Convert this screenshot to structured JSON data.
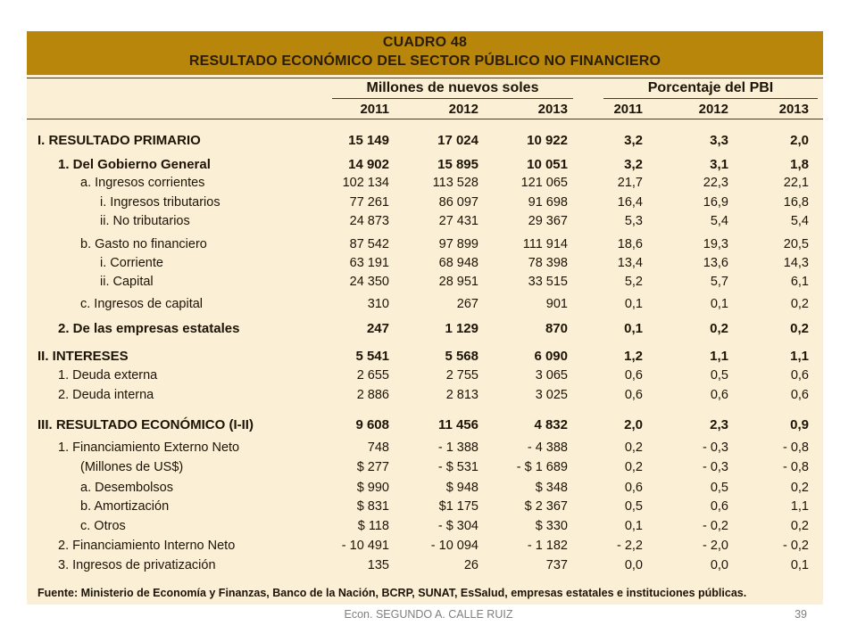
{
  "header": {
    "title": "CUADRO 48",
    "subtitle": "RESULTADO ECONÓMICO DEL SECTOR PÚBLICO NO FINANCIERO"
  },
  "columns": {
    "group1": "Millones de nuevos soles",
    "group2": "Porcentaje del PBI",
    "years": [
      "2011",
      "2012",
      "2013",
      "2011",
      "2012",
      "2013"
    ]
  },
  "rows": [
    {
      "label": "I.  RESULTADO PRIMARIO",
      "values": [
        "15 149",
        "17 024",
        "10 922",
        "3,2",
        "3,3",
        "2,0"
      ],
      "bold": true,
      "indent": 0
    },
    {
      "label": "1.  Del Gobierno General",
      "values": [
        "14 902",
        "15 895",
        "10 051",
        "3,2",
        "3,1",
        "1,8"
      ],
      "bold": true,
      "indent": 1
    },
    {
      "label": "a.  Ingresos corrientes",
      "values": [
        "102 134",
        "113 528",
        "121 065",
        "21,7",
        "22,3",
        "22,1"
      ],
      "bold": false,
      "indent": 2
    },
    {
      "label": "i.  Ingresos tributarios",
      "values": [
        "77 261",
        "86 097",
        "91 698",
        "16,4",
        "16,9",
        "16,8"
      ],
      "bold": false,
      "indent": 3
    },
    {
      "label": "ii. No tributarios",
      "values": [
        "24 873",
        "27 431",
        "29 367",
        "5,3",
        "5,4",
        "5,4"
      ],
      "bold": false,
      "indent": 3
    },
    {
      "label": "b.  Gasto no financiero",
      "values": [
        "87 542",
        "97 899",
        "111 914",
        "18,6",
        "19,3",
        "20,5"
      ],
      "bold": false,
      "indent": 2
    },
    {
      "label": "i.  Corriente",
      "values": [
        "63 191",
        "68 948",
        "78 398",
        "13,4",
        "13,6",
        "14,3"
      ],
      "bold": false,
      "indent": 3
    },
    {
      "label": "ii. Capital",
      "values": [
        "24 350",
        "28 951",
        "33 515",
        "5,2",
        "5,7",
        "6,1"
      ],
      "bold": false,
      "indent": 3
    },
    {
      "label": "c.  Ingresos de capital",
      "values": [
        "310",
        "267",
        "901",
        "0,1",
        "0,1",
        "0,2"
      ],
      "bold": false,
      "indent": 2
    },
    {
      "label": "2.  De las empresas estatales",
      "values": [
        "247",
        "1 129",
        "870",
        "0,1",
        "0,2",
        "0,2"
      ],
      "bold": true,
      "indent": 1
    },
    {
      "label": "II. INTERESES",
      "values": [
        "5 541",
        "5 568",
        "6 090",
        "1,2",
        "1,1",
        "1,1"
      ],
      "bold": true,
      "indent": 0
    },
    {
      "label": "1. Deuda externa",
      "values": [
        "2 655",
        "2 755",
        "3 065",
        "0,6",
        "0,5",
        "0,6"
      ],
      "bold": false,
      "indent": 1
    },
    {
      "label": "2. Deuda interna",
      "values": [
        "2 886",
        "2 813",
        "3 025",
        "0,6",
        "0,6",
        "0,6"
      ],
      "bold": false,
      "indent": 1
    },
    {
      "label": "III. RESULTADO ECONÓMICO (I-II)",
      "values": [
        "9 608",
        "11 456",
        "4 832",
        "2,0",
        "2,3",
        "0,9"
      ],
      "bold": true,
      "indent": 0
    },
    {
      "label": "1. Financiamiento Externo Neto",
      "values": [
        "748",
        "- 1 388",
        "- 4 388",
        "0,2",
        "- 0,3",
        "- 0,8"
      ],
      "bold": false,
      "indent": 1
    },
    {
      "label": "(Millones de US$)",
      "values": [
        "$ 277",
        "- $ 531",
        "- $ 1 689",
        "0,2",
        "- 0,3",
        "- 0,8"
      ],
      "bold": false,
      "indent": 2
    },
    {
      "label": "a. Desembolsos",
      "values": [
        "$ 990",
        "$ 948",
        "$ 348",
        "0,6",
        "0,5",
        "0,2"
      ],
      "bold": false,
      "indent": 2
    },
    {
      "label": "b. Amortización",
      "values": [
        "$ 831",
        "$1 175",
        "$ 2 367",
        "0,5",
        "0,6",
        "1,1"
      ],
      "bold": false,
      "indent": 2
    },
    {
      "label": "c. Otros",
      "values": [
        "$ 118",
        "- $ 304",
        "$ 330",
        "0,1",
        "- 0,2",
        "0,2"
      ],
      "bold": false,
      "indent": 2
    },
    {
      "label": "2. Financiamiento Interno Neto",
      "values": [
        "- 10 491",
        "- 10 094",
        "- 1 182",
        "- 2,2",
        "- 2,0",
        "- 0,2"
      ],
      "bold": false,
      "indent": 1
    },
    {
      "label": "3. Ingresos de privatización",
      "values": [
        "135",
        "26",
        "737",
        "0,0",
        "0,0",
        "0,1"
      ],
      "bold": false,
      "indent": 1
    }
  ],
  "source": "Fuente: Ministerio de Economía y Finanzas, Banco de la Nación, BCRP, SUNAT, EsSalud, empresas estatales e instituciones públicas.",
  "footer": {
    "author": "Econ. SEGUNDO A. CALLE RUIZ",
    "page": "39"
  },
  "colors": {
    "header_band": "#b8860b",
    "panel_background": "#fbefd5"
  }
}
